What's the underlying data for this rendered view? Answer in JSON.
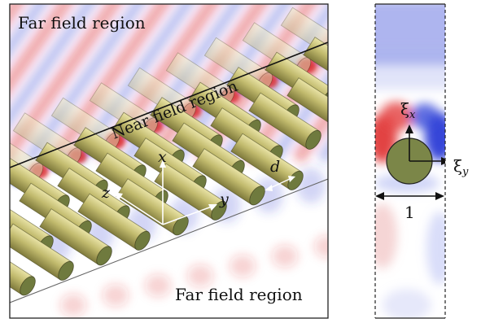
{
  "left_panel": {
    "label_far_top": "Far field region",
    "label_near": "Near field region",
    "label_far_bottom": "Far field region",
    "axis_x": "x",
    "axis_y": "y",
    "axis_z": "z",
    "spacing_label": "d"
  },
  "right_panel": {
    "axis_xi_x": "ξ",
    "axis_xi_x_sub": "x",
    "axis_xi_y": "ξ",
    "axis_xi_y_sub": "y",
    "width_label": "1"
  },
  "colors": {
    "field_positive": "#d8262b",
    "field_negative": "#2f3fd0",
    "rod_fill": "#b3ad63",
    "rod_cap": "#6f7a3e"
  }
}
